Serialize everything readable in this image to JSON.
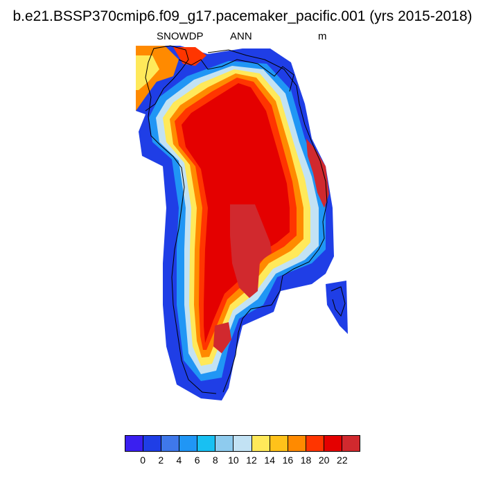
{
  "header": {
    "title": "b.e21.BSSP370cmip6.f09_g17.pacemaker_pacific.001 (yrs 2015-2018)",
    "variable": "SNOWDP",
    "season": "ANN",
    "units": "m"
  },
  "colorbar": {
    "colors": [
      "#3a1ff0",
      "#1f3ee6",
      "#3f78ea",
      "#2096f5",
      "#18c0f2",
      "#8ecbee",
      "#c2e2f4",
      "#ffe95a",
      "#ffc21a",
      "#ff8a00",
      "#ff3500",
      "#e40000",
      "#d1292e"
    ],
    "tick_labels": [
      "0",
      "2",
      "4",
      "6",
      "8",
      "10",
      "12",
      "14",
      "16",
      "18",
      "20",
      "22"
    ]
  },
  "map": {
    "region": "Greenland",
    "colors": {
      "dark_blue": "#1f3ee6",
      "mid_blue": "#3f78ea",
      "light_blue": "#2096f5",
      "cyan": "#18c0f2",
      "pale_blue": "#c2e2f4",
      "yellow": "#ffe95a",
      "gold": "#ffc21a",
      "orange": "#ff8a00",
      "red_orange": "#ff3500",
      "red": "#e40000",
      "dark_red": "#d1292e",
      "coastline": "#000000"
    }
  }
}
